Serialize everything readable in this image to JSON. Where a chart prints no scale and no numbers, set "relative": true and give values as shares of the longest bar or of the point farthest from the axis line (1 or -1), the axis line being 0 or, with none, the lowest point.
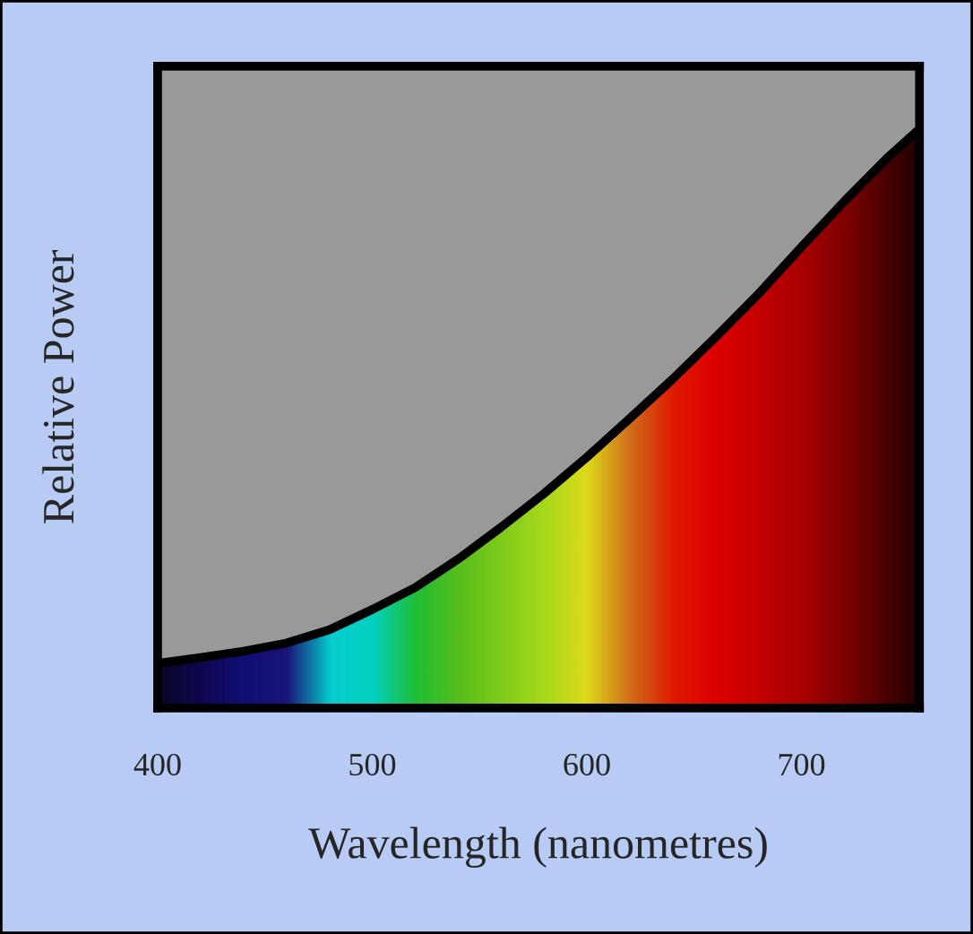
{
  "chart_data": {
    "type": "area",
    "xlabel": "Wavelength (nanometres)",
    "ylabel": "Relative Power",
    "relative": true,
    "x": [
      400,
      420,
      440,
      460,
      480,
      500,
      520,
      540,
      560,
      580,
      600,
      620,
      640,
      660,
      680,
      700,
      720,
      740,
      755
    ],
    "series": [
      {
        "color": "#000000",
        "values": [
          0.077,
          0.087,
          0.098,
          0.112,
          0.135,
          0.17,
          0.208,
          0.257,
          0.312,
          0.37,
          0.433,
          0.5,
          0.568,
          0.64,
          0.715,
          0.796,
          0.875,
          0.95,
          1.0
        ],
        "colors": [
          "#080830",
          "#0a0a60",
          "#101088",
          "#1a1a90",
          "#00f0f0",
          "#00f5e0",
          "#20e040",
          "#60e020",
          "#90f020",
          "#c0ff20",
          "#ffff20",
          "#f08020",
          "#ff2000",
          "#ff0000",
          "#e00000",
          "#c00000",
          "#900000",
          "#500000",
          "#200000"
        ]
      }
    ],
    "xlim": [
      400,
      755
    ],
    "xticks": [
      400,
      500,
      600,
      700
    ]
  }
}
